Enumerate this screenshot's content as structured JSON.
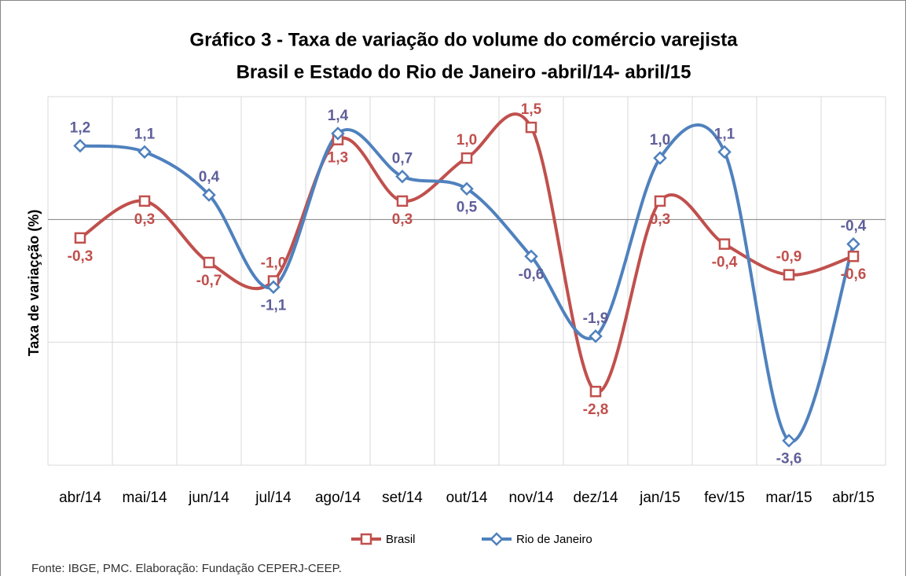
{
  "chart_data": {
    "type": "line",
    "title": "Gráfico 3 - Taxa de variação do volume do comércio varejista",
    "subtitle": "Brasil e Estado do Rio de Janeiro -abril/14- abril/15",
    "y_label": "Taxa de variaçção  (%)",
    "source": "Fonte: IBGE, PMC. Elaboração: Fundação  CEPERJ-CEEP.",
    "categories": [
      "abr/14",
      "mai/14",
      "jun/14",
      "jul/14",
      "ago/14",
      "set/14",
      "out/14",
      "nov/14",
      "dez/14",
      "jan/15",
      "fev/15",
      "mar/15",
      "abr/15"
    ],
    "series": [
      {
        "name": "Brasil",
        "color": "#c0504d",
        "label_color": "#c0504d",
        "marker": "square",
        "values": [
          -0.3,
          0.3,
          -0.7,
          -1.0,
          1.3,
          0.3,
          1.0,
          1.5,
          -2.8,
          0.3,
          -0.4,
          -0.9,
          -0.6
        ],
        "value_labels": [
          "-0,3",
          "0,3",
          "-0,7",
          "-1,0",
          "1,3",
          "0,3",
          "1,0",
          "1,5",
          "-2,8",
          "0,3",
          "-0,4",
          "-0,9",
          "-0,6"
        ]
      },
      {
        "name": "Rio de Janeiro",
        "color": "#4f81bd",
        "label_color": "#5f5f9a",
        "marker": "diamond",
        "values": [
          1.2,
          1.1,
          0.4,
          -1.1,
          1.4,
          0.7,
          0.5,
          -0.6,
          -1.9,
          1.0,
          1.1,
          -3.6,
          -0.4
        ],
        "value_labels": [
          "1,2",
          "1,1",
          "0,4",
          "-1,1",
          "1,4",
          "0,7",
          "0,5",
          "-0,6",
          "-1,9",
          "1,0",
          "1,1",
          "-3,6",
          "-0,4"
        ]
      }
    ],
    "ylim": [
      -4,
      2
    ],
    "yticks": [
      -4,
      -2,
      0,
      2
    ],
    "grid": true,
    "smooth": true,
    "legend": "bottom"
  }
}
